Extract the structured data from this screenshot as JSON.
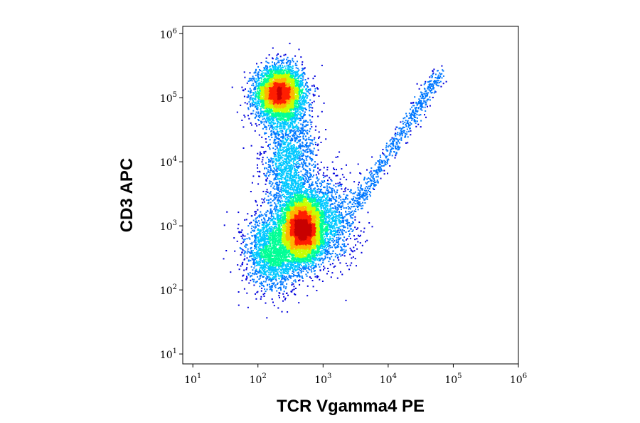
{
  "chart_data": {
    "type": "scatter",
    "subtype": "flow-cytometry-density-dot-plot",
    "title": "",
    "xlabel": "TCR Vgamma4 PE",
    "ylabel": "CD3 APC",
    "xscale": "log",
    "yscale": "log",
    "xlim": [
      7,
      1000000
    ],
    "ylim": [
      7,
      1300000
    ],
    "x_ticks": [
      {
        "base": "10",
        "exp": "1",
        "value": 10
      },
      {
        "base": "10",
        "exp": "2",
        "value": 100
      },
      {
        "base": "10",
        "exp": "3",
        "value": 1000
      },
      {
        "base": "10",
        "exp": "4",
        "value": 10000
      },
      {
        "base": "10",
        "exp": "5",
        "value": 100000
      },
      {
        "base": "10",
        "exp": "6",
        "value": 1000000
      }
    ],
    "y_ticks": [
      {
        "base": "10",
        "exp": "1",
        "value": 10
      },
      {
        "base": "10",
        "exp": "2",
        "value": 100
      },
      {
        "base": "10",
        "exp": "3",
        "value": 1000
      },
      {
        "base": "10",
        "exp": "4",
        "value": 10000
      },
      {
        "base": "10",
        "exp": "5",
        "value": 100000
      },
      {
        "base": "10",
        "exp": "6",
        "value": 1000000
      }
    ],
    "grid": false,
    "legend": "none",
    "colormap": [
      "#0000dc",
      "#0078ff",
      "#00c8ff",
      "#00ff96",
      "#c8ff00",
      "#ffb400",
      "#ff1e00",
      "#c80000"
    ],
    "populations": [
      {
        "label": "CD3-high upper cluster",
        "x_center": 210,
        "y_center": 120000,
        "x_spread_decades": 0.18,
        "y_spread_decades": 0.2,
        "weight": 0.28
      },
      {
        "label": "CD3-low main cluster",
        "x_center": 480,
        "y_center": 900,
        "x_spread_decades": 0.16,
        "y_spread_decades": 0.26,
        "weight": 0.38
      },
      {
        "label": "left tail",
        "x_center": 160,
        "y_center": 400,
        "x_spread_decades": 0.2,
        "y_spread_decades": 0.3,
        "weight": 0.12
      },
      {
        "label": "connecting bridge",
        "x_center": 300,
        "y_center": 10000,
        "x_spread_decades": 0.2,
        "y_spread_decades": 0.55,
        "weight": 0.12
      },
      {
        "label": "right shoulder",
        "x_center": 1300,
        "y_center": 1300,
        "x_spread_decades": 0.22,
        "y_spread_decades": 0.35,
        "weight": 0.06
      },
      {
        "label": "diagonal doublet streak",
        "x_start": 3000,
        "y_start": 2000,
        "x_end": 60000,
        "y_end": 250000,
        "weight": 0.04
      }
    ]
  }
}
